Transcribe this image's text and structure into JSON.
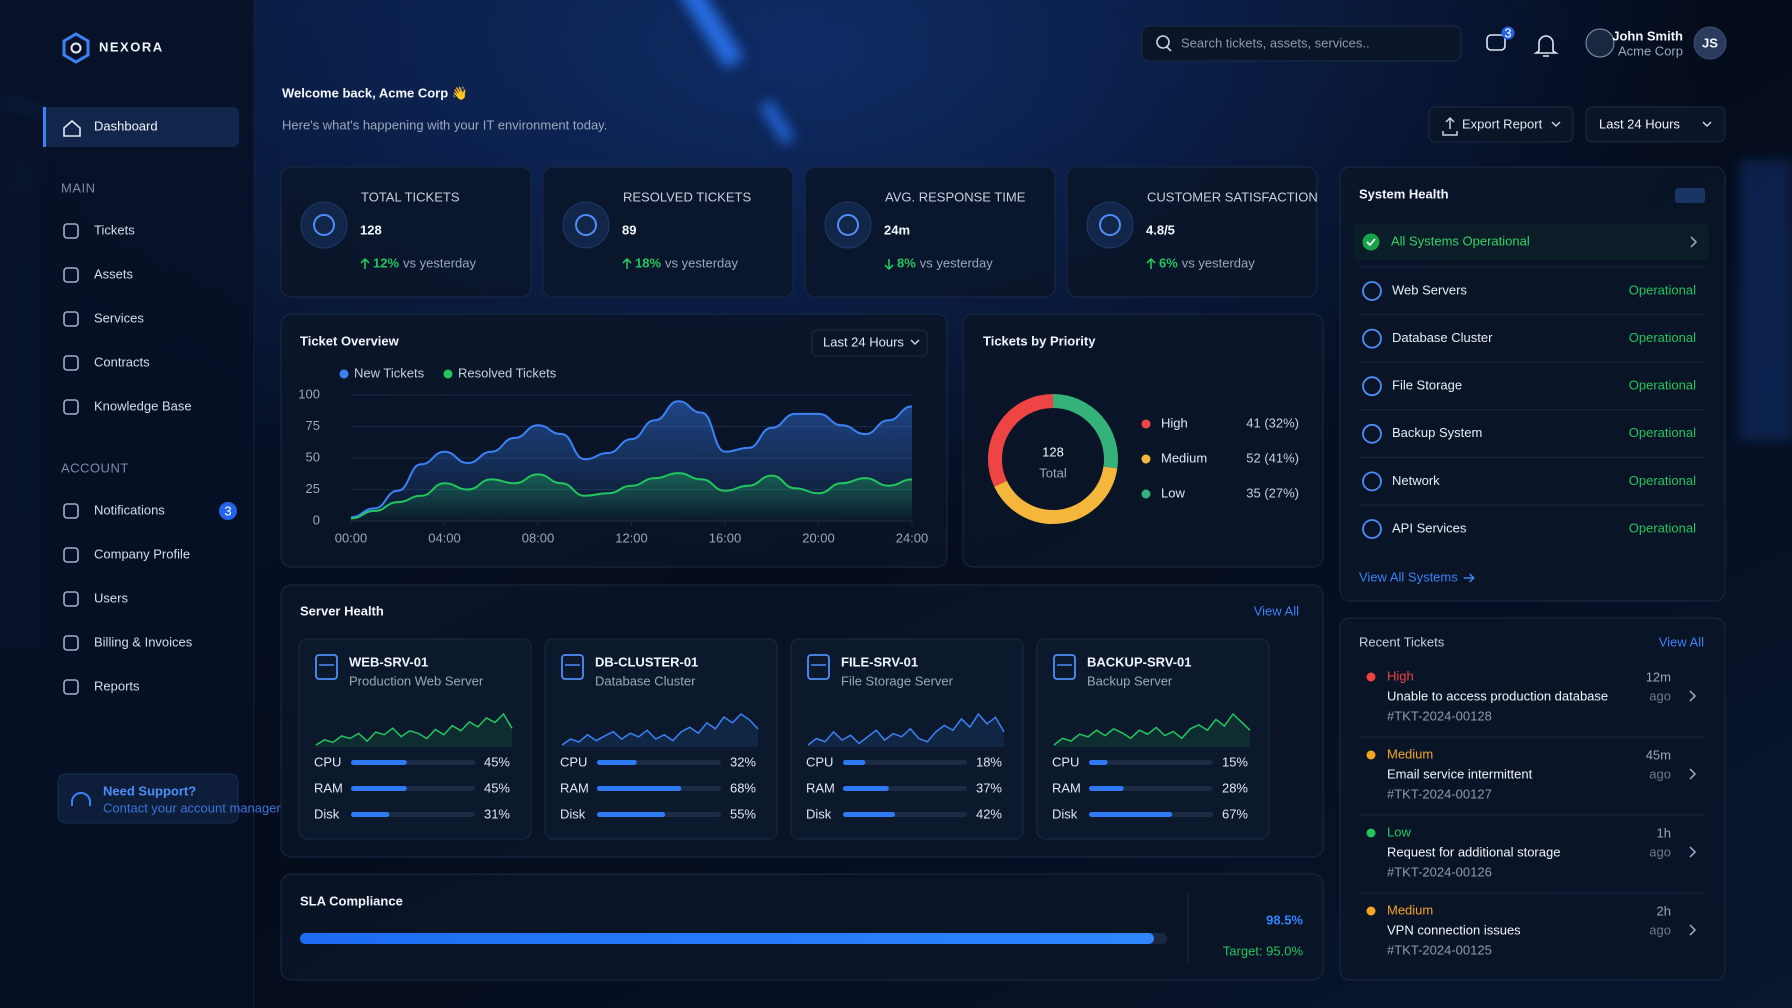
{
  "brand": "NEXORA",
  "sidebar": {
    "active": "Dashboard",
    "sections": [
      {
        "title": "MAIN",
        "items": [
          {
            "label": "Tickets"
          },
          {
            "label": "Assets"
          },
          {
            "label": "Services"
          },
          {
            "label": "Contracts"
          },
          {
            "label": "Knowledge Base"
          }
        ]
      },
      {
        "title": "ACCOUNT",
        "items": [
          {
            "label": "Notifications",
            "badge": 3
          },
          {
            "label": "Company Profile"
          },
          {
            "label": "Users"
          },
          {
            "label": "Billing & Invoices"
          },
          {
            "label": "Reports"
          }
        ]
      }
    ],
    "support": {
      "title": "Need Support?",
      "subtitle": "Contact your account manager"
    }
  },
  "header": {
    "search_placeholder": "Search tickets, assets, services..",
    "chat_badge": 3,
    "user_name": "John Smith",
    "user_org": "Acme Corp",
    "user_initials": "JS"
  },
  "welcome": {
    "title": "Welcome back, Acme Corp 👋",
    "subtitle": "Here's what's happening with your IT environment today.",
    "export_button": "Export Report",
    "range_button": "Last 24 Hours"
  },
  "kpis": [
    {
      "label": "TOTAL TICKETS",
      "value": "128",
      "change": "12%",
      "direction": "up",
      "suffix": "vs yesterday"
    },
    {
      "label": "RESOLVED TICKETS",
      "value": "89",
      "change": "18%",
      "direction": "up",
      "suffix": "vs yesterday"
    },
    {
      "label": "AVG. RESPONSE TIME",
      "value": "24m",
      "change": "8%",
      "direction": "down",
      "suffix": "vs yesterday"
    },
    {
      "label": "CUSTOMER SATISFACTION",
      "value": "4.8/5",
      "change": "6%",
      "direction": "up",
      "suffix": "vs yesterday"
    }
  ],
  "chart_data": [
    {
      "type": "line",
      "title": "Ticket Overview",
      "dropdown": "Last 24 Hours",
      "x": [
        0,
        1,
        2,
        3,
        4,
        5,
        6,
        7,
        8,
        9,
        10,
        11,
        12,
        13,
        14,
        15,
        16,
        17,
        18,
        19,
        20,
        21,
        22,
        23,
        24
      ],
      "xlim": [
        0,
        24
      ],
      "xticks": [
        {
          "value": 0,
          "label": "00:00"
        },
        {
          "value": 4,
          "label": "04:00"
        },
        {
          "value": 8,
          "label": "08:00"
        },
        {
          "value": 12,
          "label": "12:00"
        },
        {
          "value": 16,
          "label": "16:00"
        },
        {
          "value": 20,
          "label": "20:00"
        },
        {
          "value": 24,
          "label": "24:00"
        }
      ],
      "ylim": [
        0,
        100
      ],
      "yticks": [
        0,
        25,
        50,
        75,
        100
      ],
      "grid": true,
      "series": [
        {
          "name": "New Tickets",
          "color": "#3b82f6",
          "values": [
            3,
            10,
            24,
            45,
            55,
            46,
            55,
            66,
            76,
            69,
            49,
            54,
            65,
            80,
            95,
            86,
            55,
            58,
            74,
            85,
            85,
            76,
            69,
            80,
            91
          ]
        },
        {
          "name": "Resolved Tickets",
          "color": "#22c55e",
          "values": [
            2,
            8,
            15,
            20,
            30,
            25,
            33,
            30,
            37,
            30,
            20,
            22,
            28,
            34,
            38,
            33,
            24,
            28,
            36,
            26,
            22,
            30,
            34,
            28,
            33
          ]
        }
      ]
    },
    {
      "type": "donut",
      "title": "Tickets by Priority",
      "center_value": "128",
      "center_label": "Total",
      "categories": [
        "High",
        "Medium",
        "Low"
      ],
      "values": [
        41,
        52,
        35
      ],
      "value_labels": [
        "41 (32%)",
        "52 (41%)",
        "35 (27%)"
      ],
      "colors": [
        "#ef4444",
        "#f5b73b",
        "#34b27a"
      ]
    }
  ],
  "server_health": {
    "title": "Server Health",
    "view_all": "View All",
    "metric_names": [
      "CPU",
      "RAM",
      "Disk"
    ],
    "servers": [
      {
        "name": "WEB-SRV-01",
        "description": "Production Web Server",
        "color": "#22c55e",
        "trend": [
          20,
          28,
          24,
          34,
          30,
          38,
          26,
          40,
          36,
          46,
          33,
          42,
          38,
          30,
          44,
          36,
          50,
          42,
          56,
          48,
          62,
          55,
          68,
          46
        ],
        "values": [
          45,
          45,
          31
        ],
        "value_labels": [
          "45%",
          "45%",
          "31%"
        ]
      },
      {
        "name": "DB-CLUSTER-01",
        "description": "Database Cluster",
        "color": "#3b82f6",
        "trend": [
          22,
          30,
          26,
          36,
          28,
          34,
          40,
          30,
          38,
          33,
          42,
          30,
          36,
          28,
          40,
          46,
          38,
          52,
          44,
          60,
          52,
          64,
          56,
          44
        ],
        "values": [
          32,
          68,
          55
        ],
        "value_labels": [
          "32%",
          "68%",
          "55%"
        ]
      },
      {
        "name": "FILE-SRV-01",
        "description": "File Storage Server",
        "color": "#3b82f6",
        "trend": [
          24,
          32,
          28,
          40,
          30,
          36,
          26,
          34,
          42,
          30,
          38,
          34,
          44,
          32,
          28,
          40,
          48,
          42,
          56,
          46,
          62,
          50,
          58,
          40
        ],
        "values": [
          18,
          37,
          42
        ],
        "value_labels": [
          "18%",
          "37%",
          "42%"
        ]
      },
      {
        "name": "BACKUP-SRV-01",
        "description": "Backup Server",
        "color": "#22c55e",
        "trend": [
          20,
          30,
          26,
          36,
          32,
          42,
          34,
          44,
          38,
          30,
          42,
          36,
          46,
          34,
          40,
          30,
          44,
          50,
          42,
          58,
          48,
          66,
          54,
          42
        ],
        "values": [
          15,
          28,
          67
        ],
        "value_labels": [
          "15%",
          "28%",
          "67%"
        ]
      }
    ]
  },
  "sla": {
    "title": "SLA Compliance",
    "value": 98.5,
    "value_label": "98.5%",
    "target": 95.0,
    "target_label": "Target: 95.0%"
  },
  "system_health": {
    "title": "System Health",
    "overall": "All Systems Operational",
    "systems": [
      {
        "name": "Web Servers",
        "status": "Operational"
      },
      {
        "name": "Database Cluster",
        "status": "Operational"
      },
      {
        "name": "File Storage",
        "status": "Operational"
      },
      {
        "name": "Backup System",
        "status": "Operational"
      },
      {
        "name": "Network",
        "status": "Operational"
      },
      {
        "name": "API Services",
        "status": "Operational"
      }
    ],
    "view_all": "View All Systems"
  },
  "recent_tickets": {
    "title": "Recent Tickets",
    "view_all": "View All",
    "ago": "ago",
    "tickets": [
      {
        "priority": "High",
        "color": "#ef4444",
        "title": "Unable to access production database",
        "id": "#TKT-2024-00128",
        "time": "12m"
      },
      {
        "priority": "Medium",
        "color": "#f5a524",
        "title": "Email service intermittent",
        "id": "#TKT-2024-00127",
        "time": "45m"
      },
      {
        "priority": "Low",
        "color": "#22c55e",
        "title": "Request for additional storage",
        "id": "#TKT-2024-00126",
        "time": "1h"
      },
      {
        "priority": "Medium",
        "color": "#f5a524",
        "title": "VPN connection issues",
        "id": "#TKT-2024-00125",
        "time": "2h"
      }
    ]
  }
}
